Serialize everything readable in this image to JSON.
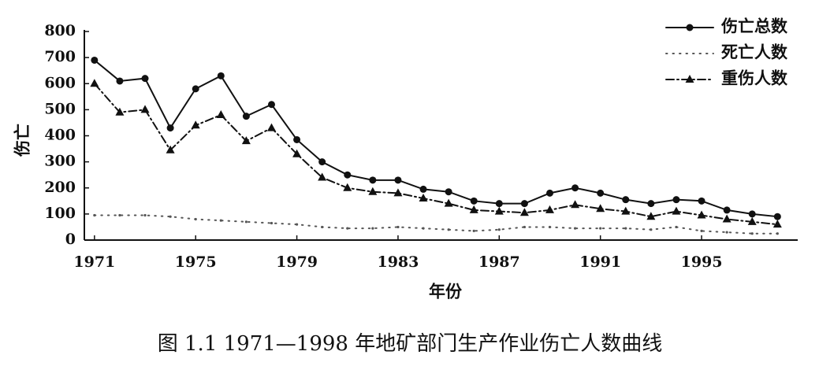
{
  "chart_data": {
    "type": "line",
    "caption": "图 1.1   1971—1998 年地矿部门生产作业伤亡人数曲线",
    "x_label": "年份",
    "y_label": "伤亡",
    "x": [
      1971,
      1972,
      1973,
      1974,
      1975,
      1976,
      1977,
      1978,
      1979,
      1980,
      1981,
      1982,
      1983,
      1984,
      1985,
      1986,
      1987,
      1988,
      1989,
      1990,
      1991,
      1992,
      1993,
      1994,
      1995,
      1996,
      1997,
      1998
    ],
    "series": [
      {
        "name": "伤亡总数",
        "color": "#111111",
        "marker": "circle",
        "dash": "solid",
        "values": [
          690,
          610,
          620,
          430,
          580,
          630,
          475,
          520,
          385,
          300,
          250,
          230,
          230,
          195,
          185,
          150,
          140,
          140,
          180,
          200,
          180,
          155,
          140,
          155,
          150,
          115,
          100,
          90
        ]
      },
      {
        "name": "死亡人数",
        "color": "#555555",
        "marker": "none",
        "dash": "dotted",
        "values": [
          95,
          95,
          95,
          90,
          80,
          75,
          70,
          65,
          60,
          50,
          45,
          45,
          50,
          45,
          40,
          35,
          40,
          50,
          50,
          45,
          45,
          45,
          40,
          50,
          35,
          30,
          25,
          25
        ]
      },
      {
        "name": "重伤人数",
        "color": "#111111",
        "marker": "triangle",
        "dash": "dashdot",
        "values": [
          600,
          490,
          500,
          345,
          440,
          480,
          380,
          430,
          330,
          240,
          200,
          185,
          180,
          160,
          140,
          115,
          110,
          105,
          115,
          135,
          120,
          110,
          90,
          110,
          95,
          80,
          70,
          60
        ]
      }
    ],
    "xlim": [
      1970.6,
      1998.8
    ],
    "xticks": [
      1971,
      1975,
      1979,
      1983,
      1987,
      1991,
      1995
    ],
    "ylim": [
      0,
      800
    ],
    "yticks": [
      0,
      100,
      200,
      300,
      400,
      500,
      600,
      700,
      800
    ],
    "legend": "top-right"
  }
}
